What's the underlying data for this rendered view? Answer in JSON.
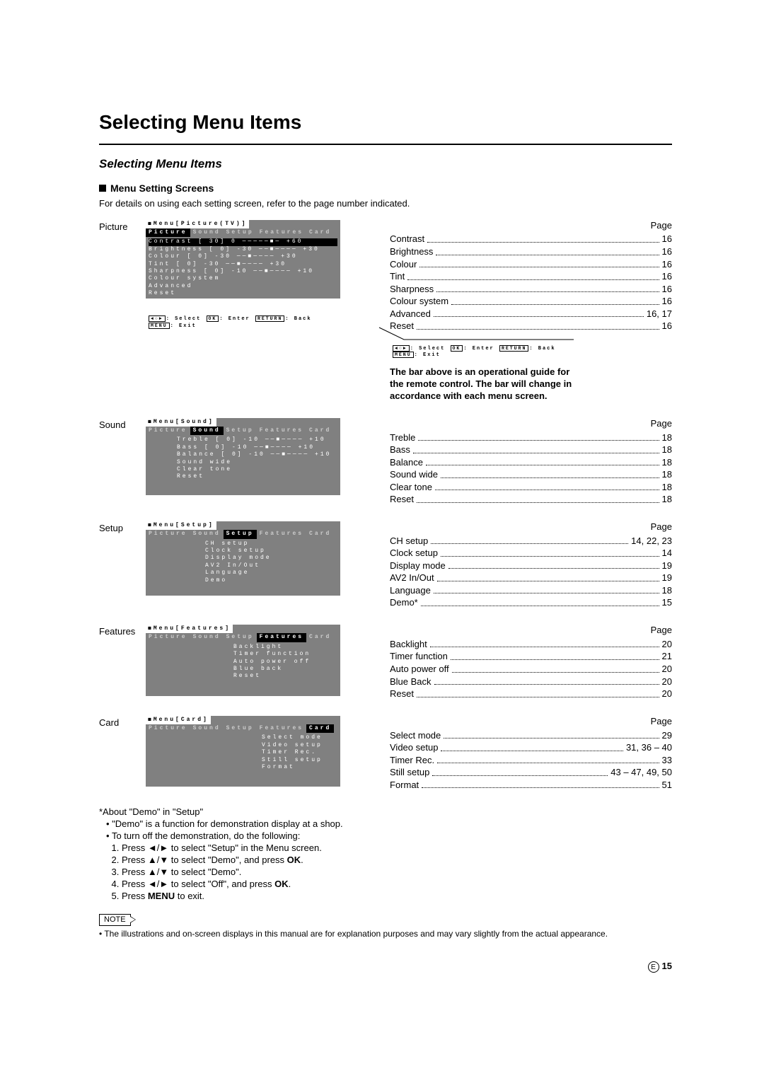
{
  "title": "Selecting Menu Items",
  "subtitle": "Selecting Menu Items",
  "section_heading": "Menu Setting Screens",
  "intro": "For details on using each setting screen, refer to the page number indicated.",
  "page_label": "Page",
  "guide_bar_text": "The bar above is an operational guide for the remote control. The bar will change in accordance with each menu screen.",
  "osd_bar": {
    "select": ": Select",
    "enter": ": Enter",
    "back_lbl": "RETURN",
    "back": ": Back",
    "exit_lbl": "MENU",
    "exit": ": Exit",
    "ok": "OK",
    "arrows": "◄○►"
  },
  "sections": [
    {
      "label": "Picture",
      "osd_title": "Menu[Picture(TV)]",
      "active_tab": "Picture",
      "tabs": [
        "Picture",
        "Sound",
        "Setup",
        "Features",
        "Card"
      ],
      "body": [
        {
          "t": "Contrast    [ 30]    0 ─────■─ +60",
          "sel": true
        },
        {
          "t": "Brightness  [  0]  -30 ──■──── +30"
        },
        {
          "t": "Colour      [  0]  -30 ──■──── +30"
        },
        {
          "t": "Tint        [  0]  -30 ──■──── +30"
        },
        {
          "t": "Sharpness   [  0]  -10 ──■──── +10"
        },
        {
          "t": "Colour system"
        },
        {
          "t": "Advanced"
        },
        {
          "t": "Reset"
        }
      ],
      "toc": [
        {
          "l": "Contrast",
          "p": "16"
        },
        {
          "l": "Brightness",
          "p": "16"
        },
        {
          "l": "Colour",
          "p": "16"
        },
        {
          "l": "Tint",
          "p": "16"
        },
        {
          "l": "Sharpness",
          "p": "16"
        },
        {
          "l": "Colour system",
          "p": "16"
        },
        {
          "l": "Advanced",
          "p": "16, 17"
        },
        {
          "l": "Reset",
          "p": "16"
        }
      ]
    },
    {
      "label": "Sound",
      "osd_title": "Menu[Sound]",
      "active_tab": "Sound",
      "tabs": [
        "Picture",
        "Sound",
        "Setup",
        "Features",
        "Card"
      ],
      "body": [
        {
          "t": "Treble      [  0]  -10 ──■──── +10"
        },
        {
          "t": "Bass        [  0]  -10 ──■──── +10"
        },
        {
          "t": "Balance     [  0]  -10 ──■──── +10"
        },
        {
          "t": "Sound wide"
        },
        {
          "t": "Clear tone"
        },
        {
          "t": "Reset"
        }
      ],
      "toc": [
        {
          "l": "Treble",
          "p": "18"
        },
        {
          "l": "Bass",
          "p": "18"
        },
        {
          "l": "Balance",
          "p": "18"
        },
        {
          "l": "Sound wide",
          "p": "18"
        },
        {
          "l": "Clear tone",
          "p": "18"
        },
        {
          "l": "Reset",
          "p": "18"
        }
      ]
    },
    {
      "label": "Setup",
      "osd_title": "Menu[Setup]",
      "active_tab": "Setup",
      "tabs": [
        "Picture",
        "Sound",
        "Setup",
        "Features",
        "Card"
      ],
      "body": [
        {
          "t": "CH setup"
        },
        {
          "t": "Clock setup"
        },
        {
          "t": "Display mode"
        },
        {
          "t": "AV2 In/Out"
        },
        {
          "t": "Language"
        },
        {
          "t": "Demo"
        }
      ],
      "toc": [
        {
          "l": "CH setup",
          "p": "14, 22, 23"
        },
        {
          "l": "Clock setup",
          "p": "14"
        },
        {
          "l": "Display mode",
          "p": "19"
        },
        {
          "l": "AV2 In/Out",
          "p": "19"
        },
        {
          "l": "Language",
          "p": "18"
        },
        {
          "l": "Demo*",
          "p": "15"
        }
      ]
    },
    {
      "label": "Features",
      "osd_title": "Menu[Features]",
      "active_tab": "Features",
      "tabs": [
        "Picture",
        "Sound",
        "Setup",
        "Features",
        "Card"
      ],
      "body": [
        {
          "t": "Backlight"
        },
        {
          "t": "Timer function"
        },
        {
          "t": "Auto power off"
        },
        {
          "t": "Blue back"
        },
        {
          "t": "Reset"
        }
      ],
      "toc": [
        {
          "l": "Backlight",
          "p": "20"
        },
        {
          "l": "Timer function",
          "p": "21"
        },
        {
          "l": "Auto power off",
          "p": "20"
        },
        {
          "l": "Blue Back",
          "p": "20"
        },
        {
          "l": "Reset",
          "p": "20"
        }
      ]
    },
    {
      "label": "Card",
      "osd_title": "Menu[Card]",
      "active_tab": "Card",
      "tabs": [
        "Picture",
        "Sound",
        "Setup",
        "Features",
        "Card"
      ],
      "body": [
        {
          "t": "Select mode"
        },
        {
          "t": "Video setup"
        },
        {
          "t": "Timer Rec."
        },
        {
          "t": "Still setup"
        },
        {
          "t": "Format"
        }
      ],
      "toc": [
        {
          "l": "Select mode",
          "p": "29"
        },
        {
          "l": "Video setup",
          "p": "31, 36 – 40"
        },
        {
          "l": "Timer Rec.",
          "p": "33"
        },
        {
          "l": "Still setup",
          "p": "43 – 47, 49, 50"
        },
        {
          "l": "Format",
          "p": "51"
        }
      ]
    }
  ],
  "about": {
    "heading": "*About \"Demo\" in \"Setup\"",
    "b1": "\"Demo\" is a function for demonstration display at a shop.",
    "b2": "To turn off the demonstration, do the following:",
    "steps": [
      "Press ◄/► to select \"Setup\" in the Menu screen.",
      "Press ▲/▼ to select \"Demo\", and press OK.",
      "Press ▲/▼ to select \"Demo\".",
      "Press ◄/► to select \"Off\", and press OK.",
      "Press MENU to exit."
    ]
  },
  "note_label": "NOTE",
  "footnote": "The illustrations and on-screen displays in this manual are for explanation purposes and may vary slightly from the actual appearance.",
  "page_e": "E",
  "page_number": "15"
}
